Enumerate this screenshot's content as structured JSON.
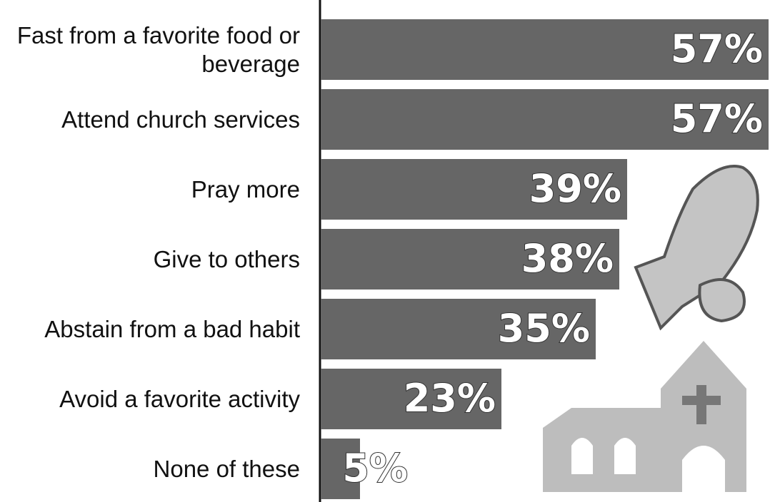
{
  "chart_data": {
    "type": "bar",
    "orientation": "horizontal",
    "categories": [
      "Fast from a favorite food or beverage",
      "Attend church services",
      "Pray more",
      "Give to others",
      "Abstain from a bad habit",
      "Avoid a favorite activity",
      "None of these"
    ],
    "values": [
      57,
      57,
      39,
      38,
      35,
      23,
      5
    ],
    "value_labels": [
      "57%",
      "57%",
      "39%",
      "38%",
      "35%",
      "23%",
      "5%"
    ],
    "color": "#666666"
  }
}
